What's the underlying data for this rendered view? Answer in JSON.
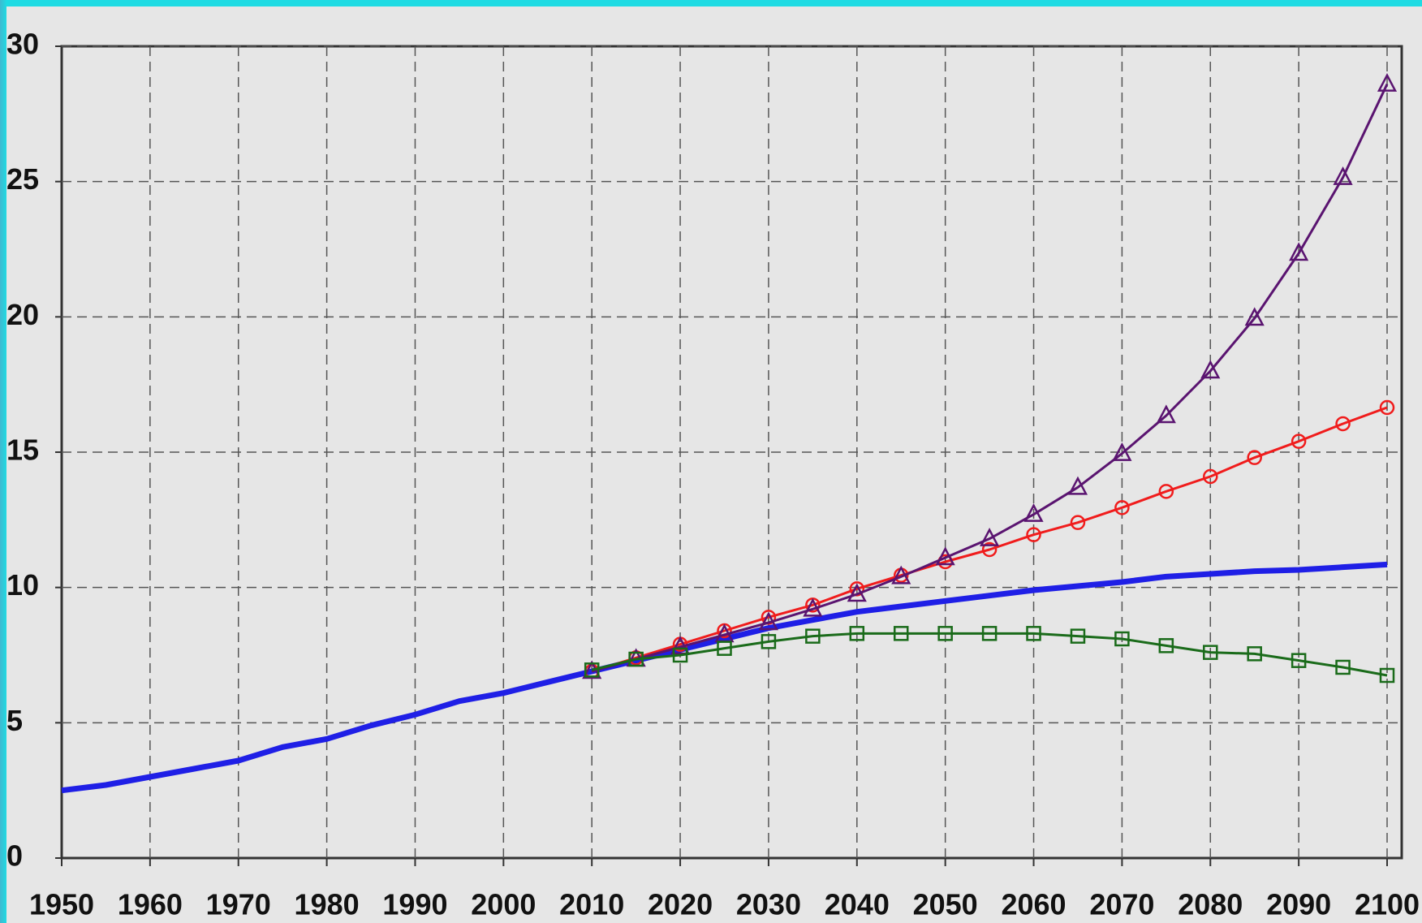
{
  "chart_data": {
    "type": "line",
    "xlim": [
      1950,
      2100
    ],
    "xticks": [
      1950,
      1960,
      1970,
      1980,
      1990,
      2000,
      2010,
      2020,
      2030,
      2040,
      2050,
      2060,
      2070,
      2080,
      2090,
      2100
    ],
    "ylim": [
      0,
      30
    ],
    "yticks": [
      0,
      5,
      10,
      15,
      20,
      25,
      30
    ],
    "grid": true,
    "series": [
      {
        "color": "#1f1fe6",
        "marker": "none",
        "x": [
          1950,
          1955,
          1960,
          1965,
          1970,
          1975,
          1980,
          1985,
          1990,
          1995,
          2000,
          2005,
          2010,
          2015,
          2020,
          2025,
          2030,
          2035,
          2040,
          2045,
          2050,
          2055,
          2060,
          2065,
          2070,
          2075,
          2080,
          2085,
          2090,
          2095,
          2100
        ],
        "values": [
          2.5,
          2.7,
          3.0,
          3.3,
          3.6,
          4.1,
          4.4,
          4.9,
          5.3,
          5.8,
          6.1,
          6.5,
          6.9,
          7.3,
          7.7,
          8.1,
          8.5,
          8.8,
          9.1,
          9.3,
          9.5,
          9.7,
          9.9,
          10.05,
          10.2,
          10.4,
          10.5,
          10.6,
          10.65,
          10.75,
          10.85
        ]
      },
      {
        "color": "#f01c1c",
        "marker": "circle",
        "x": [
          2010,
          2015,
          2020,
          2025,
          2030,
          2035,
          2040,
          2045,
          2050,
          2055,
          2060,
          2065,
          2070,
          2075,
          2080,
          2085,
          2090,
          2095,
          2100
        ],
        "values": [
          6.9,
          7.4,
          7.9,
          8.4,
          8.9,
          9.35,
          9.95,
          10.45,
          10.95,
          11.4,
          11.95,
          12.4,
          12.95,
          13.55,
          14.1,
          14.8,
          15.4,
          16.05,
          16.65
        ]
      },
      {
        "color": "#5a1470",
        "marker": "triangle",
        "x": [
          2010,
          2015,
          2020,
          2025,
          2030,
          2035,
          2040,
          2045,
          2050,
          2055,
          2060,
          2065,
          2070,
          2075,
          2080,
          2085,
          2090,
          2095,
          2100
        ],
        "values": [
          6.9,
          7.35,
          7.8,
          8.25,
          8.7,
          9.2,
          9.75,
          10.4,
          11.1,
          11.8,
          12.7,
          13.7,
          14.95,
          16.35,
          18.0,
          19.95,
          22.35,
          25.15,
          28.6
        ]
      },
      {
        "color": "#1a6b1a",
        "marker": "square",
        "x": [
          2010,
          2015,
          2020,
          2025,
          2030,
          2035,
          2040,
          2045,
          2050,
          2055,
          2060,
          2065,
          2070,
          2075,
          2080,
          2085,
          2090,
          2095,
          2100
        ],
        "values": [
          6.95,
          7.35,
          7.5,
          7.75,
          8.0,
          8.2,
          8.3,
          8.3,
          8.3,
          8.3,
          8.3,
          8.2,
          8.1,
          7.85,
          7.6,
          7.55,
          7.3,
          7.05,
          6.75
        ]
      }
    ]
  }
}
